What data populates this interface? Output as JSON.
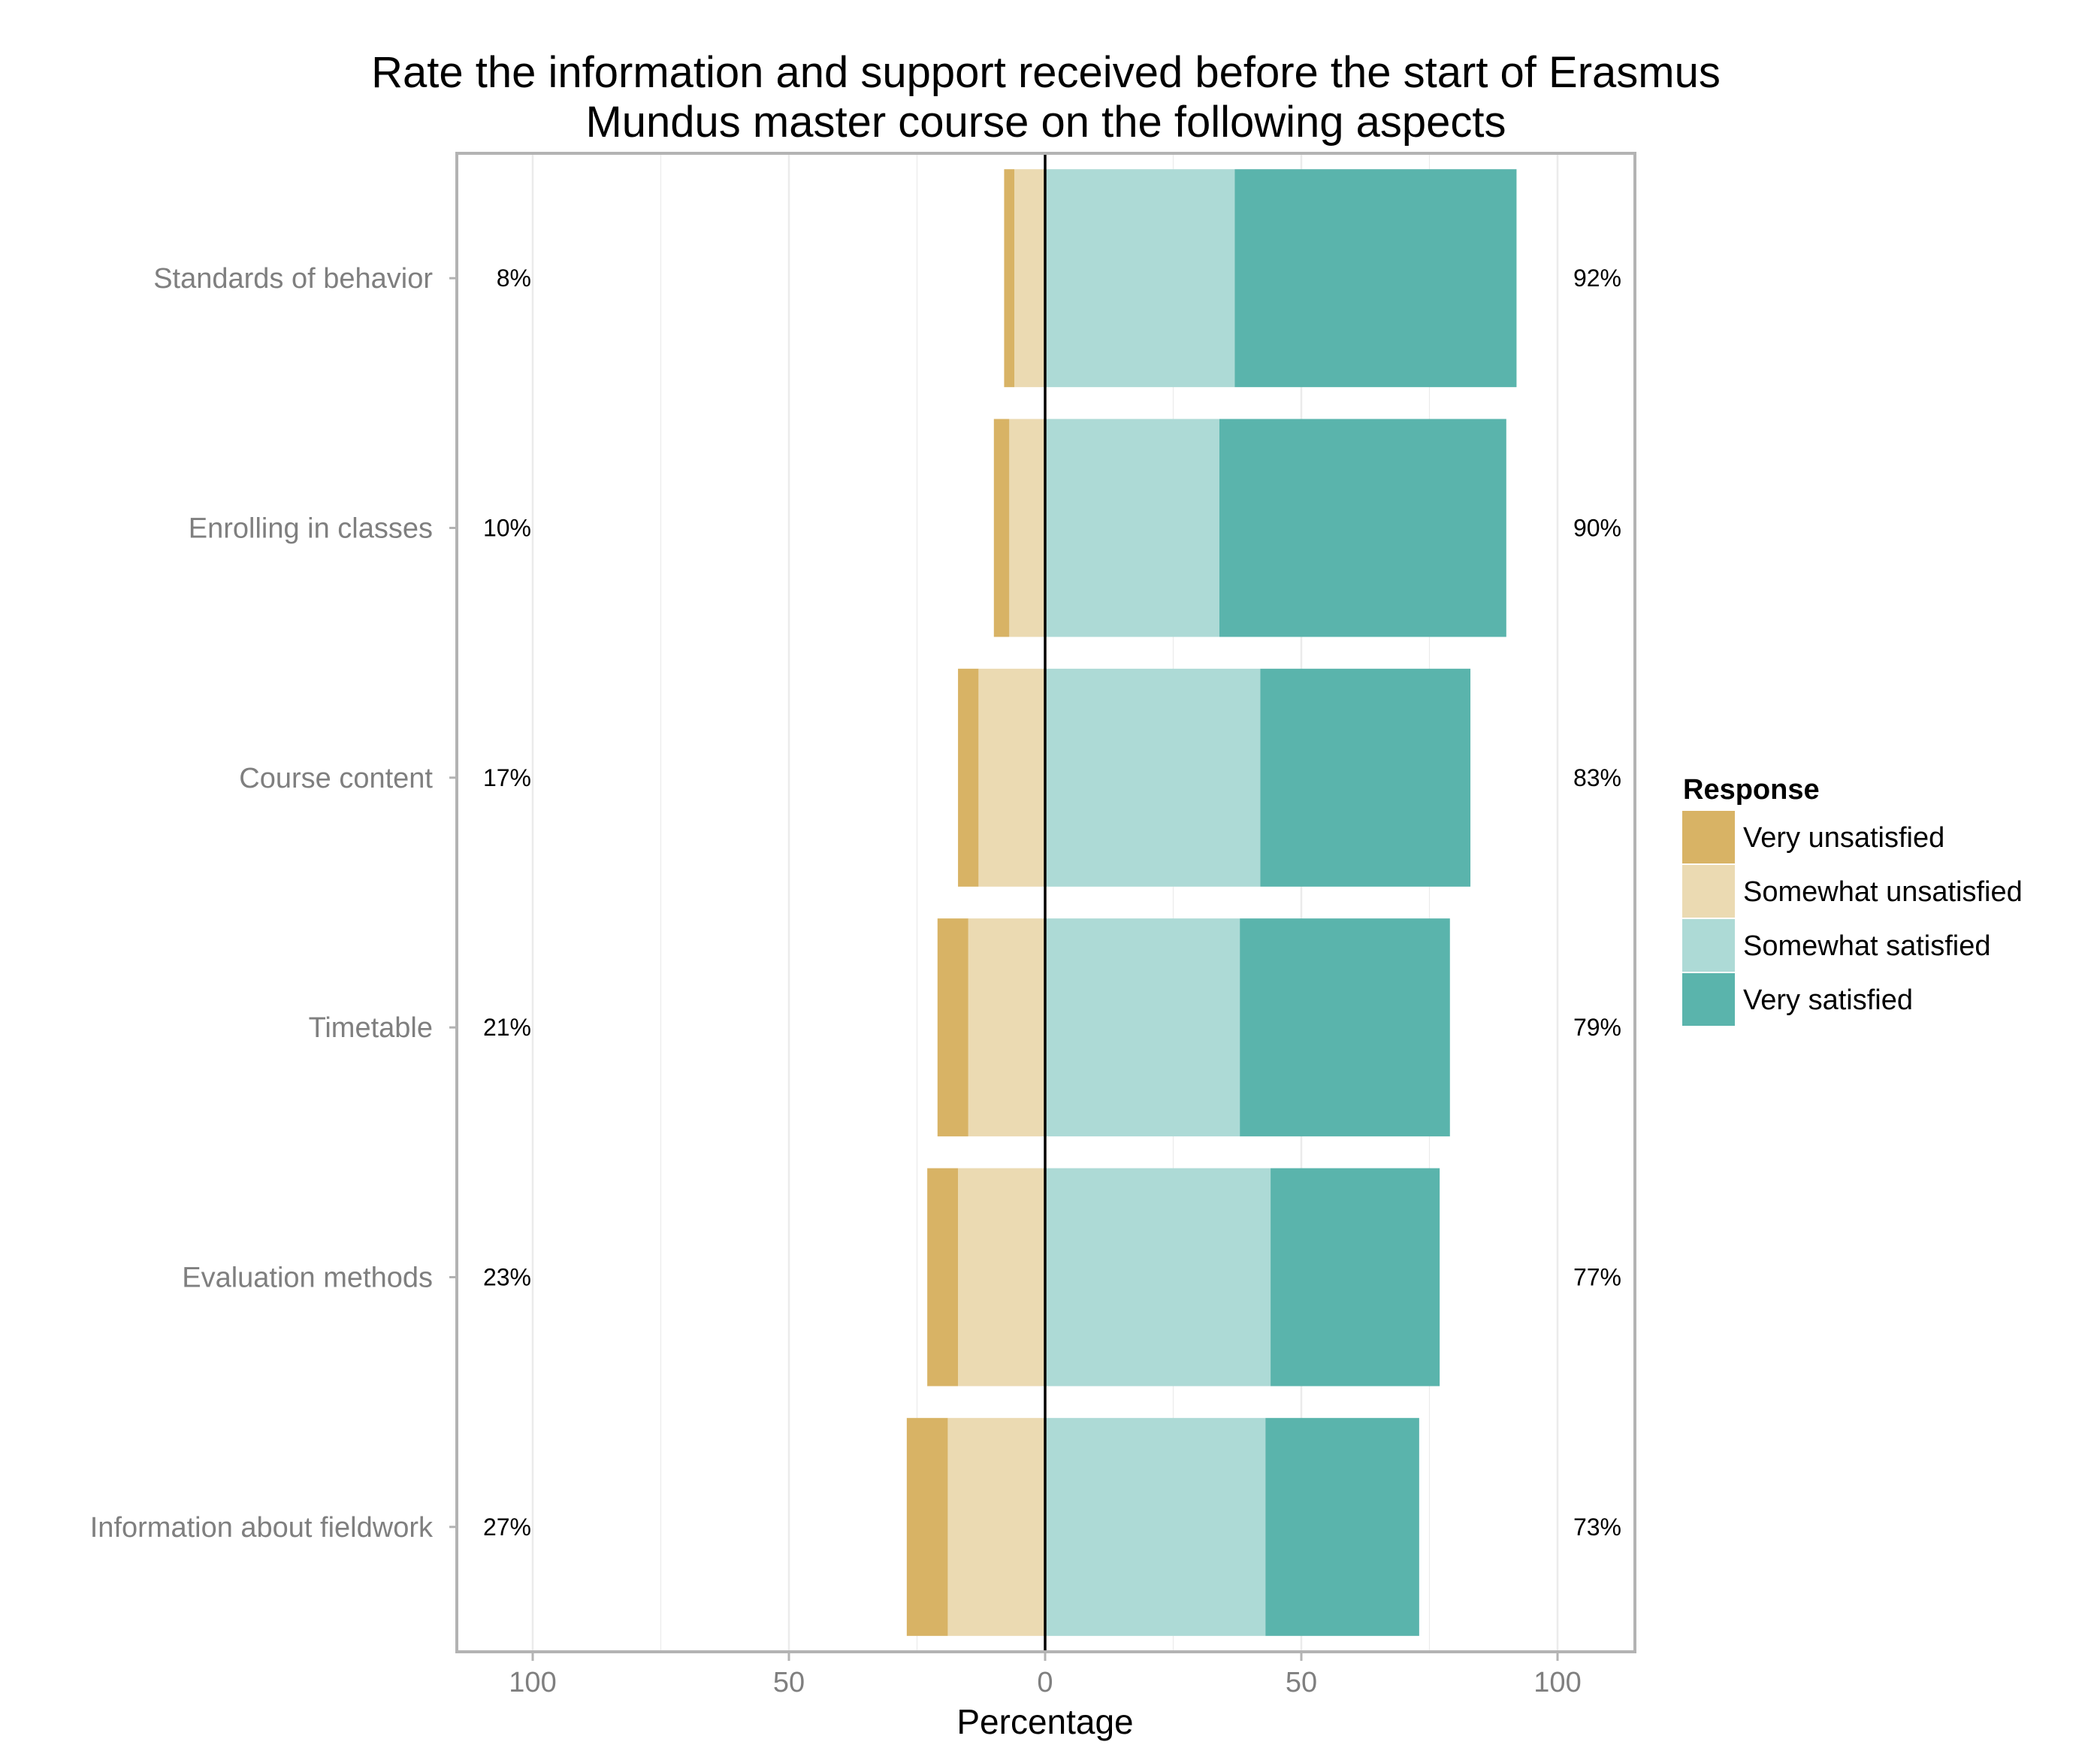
{
  "chart_data": {
    "type": "bar",
    "orientation": "horizontal-diverging",
    "title_lines": [
      "Rate the information and support received before the start of Erasmus",
      "Mundus master course on the following aspects"
    ],
    "xlabel": "Percentage",
    "ylabel": "",
    "xlim": [
      -115,
      115
    ],
    "x_ticks": [
      -100,
      -50,
      0,
      50,
      100
    ],
    "x_tick_labels": [
      "100",
      "50",
      "0",
      "50",
      "100"
    ],
    "grid": true,
    "legend_position": "right",
    "legend_title": "Response",
    "categories": [
      "Standards of behavior",
      "Enrolling in classes",
      "Course content",
      "Timetable",
      "Evaluation methods",
      "Information about fieldwork"
    ],
    "series": [
      {
        "name": "Very unsatisfied",
        "color": "#d8b365",
        "side": "negative",
        "values": [
          2,
          3,
          4,
          6,
          6,
          8
        ]
      },
      {
        "name": "Somewhat unsatisfied",
        "color": "#ebdab2",
        "side": "negative",
        "values": [
          6,
          7,
          13,
          15,
          17,
          19
        ]
      },
      {
        "name": "Somewhat satisfied",
        "color": "#addad6",
        "side": "positive",
        "values": [
          37,
          34,
          42,
          38,
          44,
          43
        ]
      },
      {
        "name": "Very satisfied",
        "color": "#5ab4ac",
        "side": "positive",
        "values": [
          55,
          56,
          41,
          41,
          33,
          30
        ]
      }
    ],
    "left_totals": [
      "8%",
      "10%",
      "17%",
      "21%",
      "23%",
      "27%"
    ],
    "right_totals": [
      "92%",
      "90%",
      "83%",
      "79%",
      "77%",
      "73%"
    ]
  }
}
